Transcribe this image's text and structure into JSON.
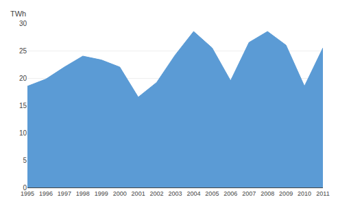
{
  "chart_data": {
    "type": "area",
    "ylabel": "TWh",
    "x": [
      1995,
      1996,
      1997,
      1998,
      1999,
      2000,
      2001,
      2002,
      2003,
      2004,
      2005,
      2006,
      2007,
      2008,
      2009,
      2010,
      2011
    ],
    "values": [
      18.5,
      19.8,
      22.0,
      24.0,
      23.3,
      22.0,
      16.5,
      19.2,
      24.2,
      28.5,
      25.5,
      19.5,
      26.5,
      28.5,
      26.0,
      18.5,
      25.5
    ],
    "color": "#5b9bd5",
    "xlim": [
      1995,
      2011
    ],
    "xticks": [
      1995,
      1996,
      1997,
      1998,
      1999,
      2000,
      2001,
      2002,
      2003,
      2004,
      2005,
      2006,
      2007,
      2008,
      2009,
      2010,
      2011
    ],
    "ylim": [
      0,
      30
    ],
    "yticks": [
      0,
      5,
      10,
      15,
      20,
      25,
      30
    ],
    "grid": true
  }
}
